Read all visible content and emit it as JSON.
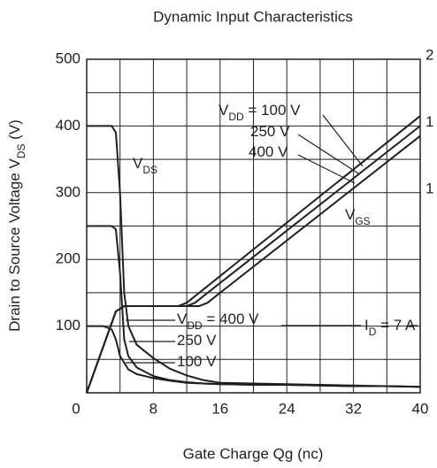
{
  "chart_data": {
    "type": "line",
    "title": "Dynamic Input Characteristics",
    "xlabel": "Gate Charge  Qg  (nc)",
    "ylabel": {
      "prefix": "Drain to Source Voltage  V",
      "sub": "DS",
      "suffix": "  (V)"
    },
    "xlim": [
      0,
      40
    ],
    "ylim": [
      0,
      500
    ],
    "xticks": [
      0,
      8,
      16,
      24,
      32,
      40
    ],
    "yticks": [
      100,
      200,
      300,
      400,
      500
    ],
    "minor_xticks": [
      4,
      12,
      20,
      28,
      36
    ],
    "minor_yticks": [
      50,
      150,
      250,
      350,
      450
    ],
    "right_axis_labels": [
      "2",
      "1",
      "1"
    ],
    "grid": true,
    "color": "#231f20",
    "series": [
      {
        "x": [
          0,
          3,
          3.5,
          4,
          4.5,
          5,
          6,
          8,
          10,
          12,
          14,
          16,
          20,
          24,
          28,
          32,
          36,
          40
        ],
        "values": [
          400,
          400,
          390,
          300,
          150,
          100,
          72,
          52,
          36,
          26,
          19,
          15,
          14,
          13,
          12,
          11,
          10,
          9
        ]
      },
      {
        "x": [
          0,
          3,
          3.5,
          4,
          4.5,
          5,
          6,
          8,
          10,
          12,
          14,
          16,
          20,
          24,
          28,
          32,
          36,
          40
        ],
        "values": [
          250,
          250,
          245,
          180,
          80,
          55,
          38,
          25,
          19,
          16,
          14,
          13,
          12,
          12,
          11,
          10,
          10,
          9
        ]
      },
      {
        "x": [
          0,
          2,
          3,
          3.5,
          4,
          5,
          6,
          8,
          10,
          12,
          14,
          16,
          20,
          24,
          28,
          32,
          36,
          40
        ],
        "values": [
          100,
          100,
          95,
          80,
          55,
          35,
          28,
          22,
          18,
          15,
          14,
          13,
          12,
          12,
          11,
          10,
          10,
          9
        ]
      },
      {
        "x": [
          0,
          3.5,
          4.5,
          11,
          12,
          13,
          40
        ],
        "values": [
          0,
          122,
          130,
          130,
          135,
          145,
          415
        ]
      },
      {
        "x": [
          0,
          3.5,
          4.5,
          12,
          13,
          14,
          40
        ],
        "values": [
          0,
          122,
          130,
          130,
          135,
          145,
          400
        ]
      },
      {
        "x": [
          0,
          3.5,
          4.5,
          13.5,
          14.5,
          15.5,
          40
        ],
        "values": [
          0,
          122,
          130,
          130,
          135,
          145,
          385
        ]
      }
    ],
    "annotations": [
      {
        "prefix": "V",
        "sub": "DS"
      },
      {
        "prefix": "V",
        "sub": "DD",
        "suffix": " = 100 V"
      },
      {
        "prefix": "250 V"
      },
      {
        "prefix": "400 V"
      },
      {
        "prefix": "V",
        "sub": "GS"
      },
      {
        "prefix": "V",
        "sub": "DD",
        "suffix": " = 400 V"
      },
      {
        "prefix": "250 V"
      },
      {
        "prefix": "100 V"
      },
      {
        "prefix": "I",
        "sub": "D",
        "suffix": " = 7 A"
      }
    ]
  }
}
